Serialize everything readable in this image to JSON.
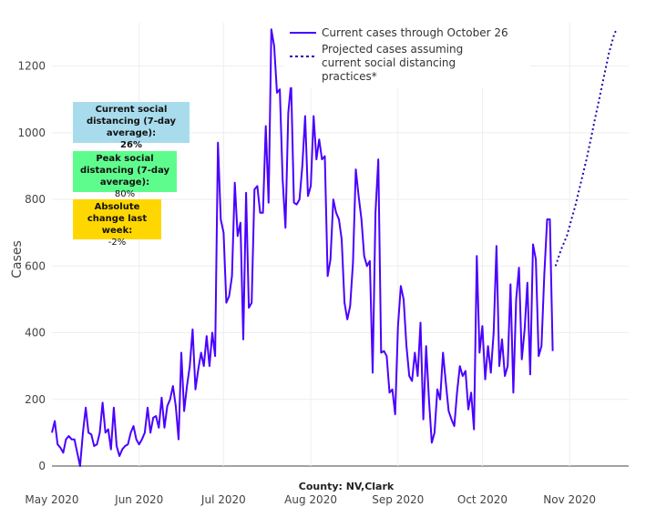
{
  "chart_data": {
    "type": "line",
    "title": "",
    "xlabel": "County: NV,Clark",
    "ylabel": "Cases",
    "ylim": [
      0,
      1330
    ],
    "yticks": [
      0,
      200,
      400,
      600,
      800,
      1000,
      1200
    ],
    "xticks": [
      {
        "date": "2020-05-01",
        "label": "May 2020"
      },
      {
        "date": "2020-06-01",
        "label": "Jun 2020"
      },
      {
        "date": "2020-07-01",
        "label": "Jul 2020"
      },
      {
        "date": "2020-08-01",
        "label": "Aug 2020"
      },
      {
        "date": "2020-09-01",
        "label": "Sep 2020"
      },
      {
        "date": "2020-10-01",
        "label": "Oct 2020"
      },
      {
        "date": "2020-11-01",
        "label": "Nov 2020"
      }
    ],
    "xlim": [
      "2020-05-01",
      "2020-11-22"
    ],
    "legend_position": "top-right",
    "series": [
      {
        "name": "Current cases through October 26",
        "style": "solid",
        "color": "#4a00ff",
        "start_date": "2020-05-01",
        "values": [
          100,
          135,
          65,
          55,
          40,
          80,
          90,
          80,
          80,
          40,
          0,
          100,
          175,
          100,
          95,
          60,
          65,
          100,
          190,
          100,
          110,
          50,
          175,
          60,
          30,
          50,
          60,
          65,
          100,
          120,
          80,
          65,
          80,
          100,
          175,
          100,
          145,
          150,
          115,
          205,
          115,
          180,
          200,
          240,
          180,
          80,
          340,
          165,
          240,
          300,
          410,
          230,
          290,
          340,
          300,
          390,
          300,
          400,
          330,
          970,
          740,
          700,
          490,
          510,
          570,
          850,
          690,
          730,
          380,
          820,
          475,
          490,
          830,
          840,
          760,
          760,
          1020,
          790,
          1310,
          1260,
          1120,
          1130,
          860,
          715,
          1060,
          1150,
          790,
          785,
          800,
          900,
          1050,
          810,
          840,
          1050,
          920,
          980,
          920,
          930,
          570,
          620,
          800,
          760,
          740,
          680,
          490,
          440,
          480,
          610,
          890,
          810,
          740,
          630,
          600,
          615,
          280,
          760,
          920,
          340,
          345,
          330,
          220,
          230,
          155,
          420,
          540,
          500,
          360,
          270,
          255,
          340,
          270,
          430,
          140,
          360,
          200,
          70,
          100,
          230,
          200,
          340,
          250,
          165,
          140,
          120,
          220,
          300,
          270,
          285,
          170,
          220,
          110,
          630,
          340,
          420,
          260,
          360,
          280,
          400,
          660,
          300,
          380,
          270,
          300,
          545,
          220,
          500,
          595,
          320,
          410,
          550,
          275,
          665,
          620,
          330,
          360,
          575,
          740,
          740,
          345
        ]
      },
      {
        "name": "Projected cases assuming current social distancing practices*",
        "style": "dotted",
        "color": "#2a00b0",
        "start_date": "2020-10-27",
        "values": [
          600,
          625,
          650,
          670,
          690,
          720,
          750,
          780,
          815,
          850,
          885,
          920,
          960,
          1000,
          1040,
          1080,
          1120,
          1160,
          1200,
          1240,
          1270,
          1300,
          1310
        ]
      }
    ]
  },
  "annotations": [
    {
      "title": "Current social distancing (7-day average):",
      "value": "26%",
      "color": "#a8dced"
    },
    {
      "title": "Peak social distancing (7-day average):",
      "value": "80%",
      "color": "#5efc8d"
    },
    {
      "title": "Absolute change last week:",
      "value": "-2%",
      "color": "#ffd700"
    }
  ]
}
